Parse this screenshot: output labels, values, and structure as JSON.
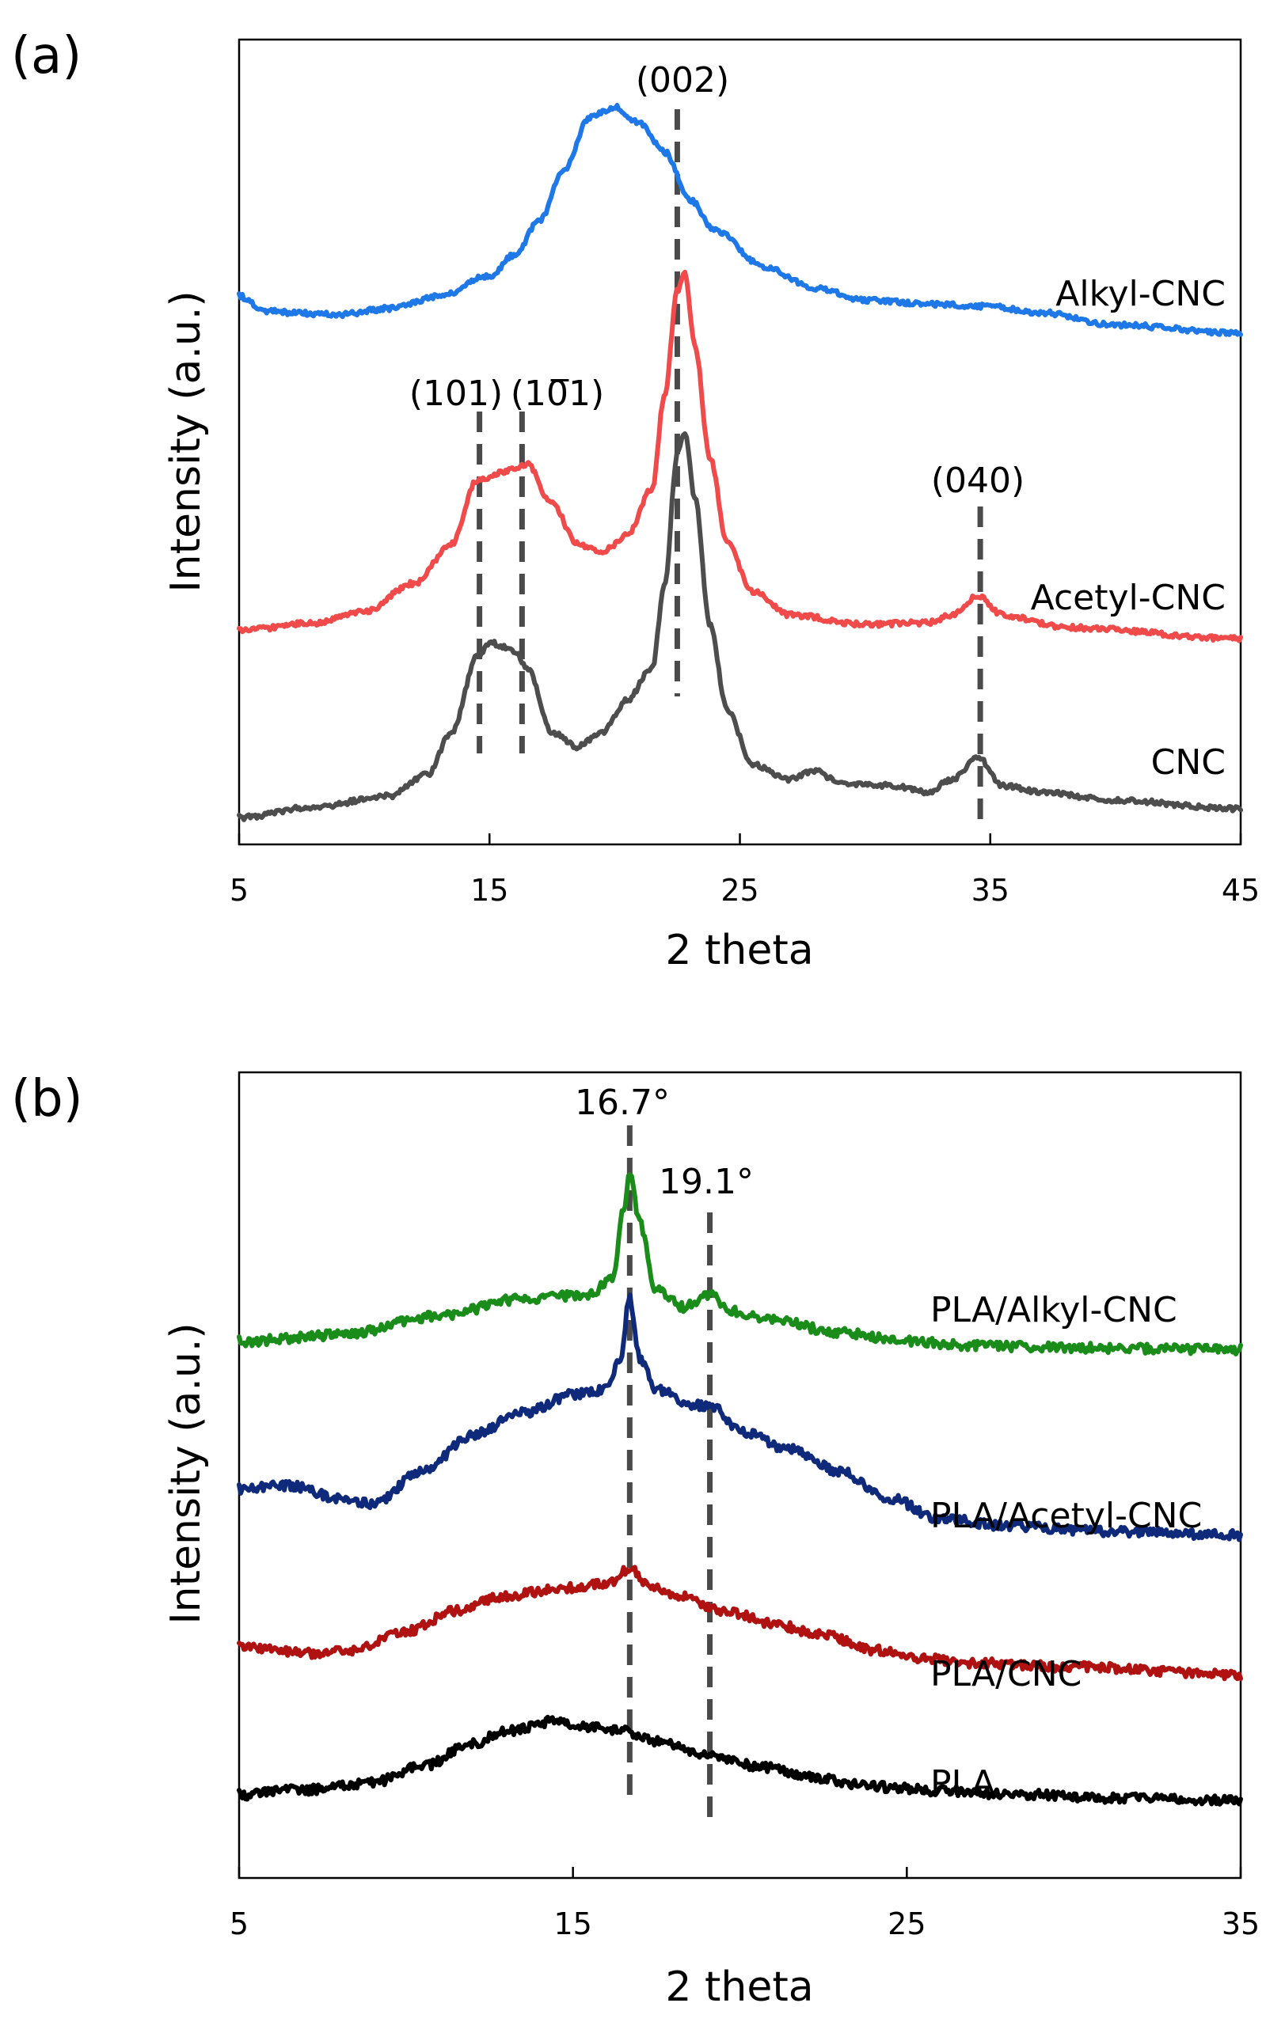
{
  "chart_data": [
    {
      "panel": "(a)",
      "type": "line",
      "xlabel": "2 theta",
      "ylabel": "Intensity (a.u.)",
      "xlim": [
        5,
        45
      ],
      "xticks": [
        5,
        15,
        25,
        35,
        45
      ],
      "yticks": false,
      "series": [
        {
          "name": "CNC",
          "color": "#4d4d4d",
          "x": [
            5,
            8,
            11,
            12.5,
            13.5,
            14.5,
            15,
            16,
            16.5,
            17.5,
            18.5,
            19.5,
            20.5,
            21.5,
            22,
            22.5,
            22.8,
            23.2,
            23.8,
            24.5,
            25.5,
            27,
            28,
            29,
            31,
            32.5,
            33.5,
            34.5,
            35.5,
            37,
            40,
            45
          ],
          "y": [
            0.0,
            0.05,
            0.1,
            0.2,
            0.4,
            0.75,
            0.82,
            0.78,
            0.7,
            0.4,
            0.33,
            0.4,
            0.55,
            0.7,
            1.1,
            1.7,
            1.8,
            1.5,
            0.9,
            0.5,
            0.25,
            0.18,
            0.22,
            0.16,
            0.15,
            0.12,
            0.18,
            0.28,
            0.15,
            0.12,
            0.08,
            0.04
          ]
        },
        {
          "name": "Acetyl-CNC",
          "color": "#f04a4a",
          "x": [
            5,
            8,
            10,
            12,
            13.5,
            14.5,
            15.5,
            16.5,
            17.5,
            18.5,
            19.5,
            20.5,
            21.5,
            22,
            22.5,
            22.8,
            23.2,
            23.8,
            24.5,
            25.5,
            27,
            30,
            32.5,
            33.5,
            34.5,
            35.5,
            38,
            45
          ],
          "y": [
            0.0,
            0.05,
            0.12,
            0.3,
            0.55,
            0.95,
            1.0,
            1.05,
            0.8,
            0.55,
            0.5,
            0.6,
            0.9,
            1.5,
            2.15,
            2.25,
            1.8,
            1.1,
            0.55,
            0.25,
            0.1,
            0.04,
            0.05,
            0.1,
            0.22,
            0.1,
            0.02,
            -0.05
          ]
        },
        {
          "name": "Alkyl-CNC",
          "color": "#1e78e8",
          "x": [
            5,
            6,
            7,
            9,
            11,
            13,
            15,
            16,
            17,
            18,
            19,
            20,
            21,
            22,
            23,
            24,
            26,
            28,
            30,
            33,
            35,
            37,
            40,
            45
          ],
          "y": [
            0.08,
            0.01,
            0.0,
            -0.01,
            0.02,
            0.08,
            0.18,
            0.28,
            0.45,
            0.7,
            0.95,
            1.0,
            0.92,
            0.78,
            0.55,
            0.4,
            0.22,
            0.12,
            0.06,
            0.04,
            0.03,
            0.0,
            -0.06,
            -0.1
          ]
        }
      ],
      "reference_lines_x": [
        14.6,
        16.3,
        22.5,
        34.6
      ],
      "annotations": [
        "(101)",
        "(10̅1)",
        "(002)",
        "(040)"
      ],
      "series_labels": [
        "Alkyl-CNC",
        "Acetyl-CNC",
        "CNC"
      ]
    },
    {
      "panel": "(b)",
      "type": "line",
      "xlabel": "2 theta",
      "ylabel": "Intensity (a.u.)",
      "xlim": [
        5,
        35
      ],
      "xticks": [
        5,
        15,
        25,
        35
      ],
      "yticks": false,
      "series": [
        {
          "name": "PLA",
          "color": "#000000",
          "x": [
            5,
            7,
            9,
            10.5,
            12,
            13,
            14.5,
            15.5,
            16.5,
            17.5,
            19,
            20.5,
            22,
            24,
            26,
            28,
            31,
            35
          ],
          "y": [
            0.0,
            0.05,
            0.12,
            0.28,
            0.5,
            0.62,
            0.72,
            0.66,
            0.62,
            0.52,
            0.4,
            0.28,
            0.18,
            0.08,
            0.04,
            0.01,
            -0.03,
            -0.05
          ]
        },
        {
          "name": "PLA/CNC",
          "color": "#b01212",
          "x": [
            5,
            7,
            8.5,
            10,
            11.5,
            13,
            14.5,
            15.5,
            16.2,
            16.7,
            17.2,
            18,
            19.5,
            21,
            22.5,
            24,
            25.5,
            27,
            30,
            35
          ],
          "y": [
            0.0,
            -0.05,
            -0.02,
            0.15,
            0.35,
            0.48,
            0.55,
            0.58,
            0.62,
            0.75,
            0.6,
            0.5,
            0.35,
            0.22,
            0.12,
            -0.02,
            -0.1,
            -0.14,
            -0.18,
            -0.25
          ]
        },
        {
          "name": "PLA/Acetyl-CNC",
          "color": "#0f2a7a",
          "x": [
            5,
            6.5,
            8,
            9,
            10.5,
            12,
            13.5,
            15,
            16,
            16.4,
            16.7,
            17.0,
            17.5,
            18.5,
            19.2,
            20,
            21.5,
            23,
            24.5,
            26,
            28,
            31,
            35
          ],
          "y": [
            0.0,
            0.02,
            -0.05,
            -0.08,
            0.1,
            0.3,
            0.42,
            0.52,
            0.55,
            0.7,
            1.05,
            0.72,
            0.55,
            0.47,
            0.45,
            0.32,
            0.22,
            0.1,
            -0.05,
            -0.16,
            -0.2,
            -0.23,
            -0.25
          ]
        },
        {
          "name": "PLA/Alkyl-CNC",
          "color": "#1a8c1a",
          "x": [
            5,
            8,
            11,
            13.5,
            15.5,
            16.2,
            16.5,
            16.7,
            17.0,
            17.5,
            18.3,
            19.1,
            19.8,
            21,
            23,
            25,
            27,
            30,
            35
          ],
          "y": [
            0.0,
            0.03,
            0.12,
            0.2,
            0.22,
            0.3,
            0.6,
            0.78,
            0.55,
            0.24,
            0.16,
            0.22,
            0.14,
            0.1,
            0.04,
            0.0,
            -0.02,
            -0.03,
            -0.04
          ]
        }
      ],
      "reference_lines_x": [
        16.7,
        19.1
      ],
      "annotations": [
        "16.7°",
        "19.1°"
      ],
      "series_labels": [
        "PLA/Alkyl-CNC",
        "PLA/Acetyl-CNC",
        "PLA/CNC",
        "PLA"
      ]
    }
  ]
}
